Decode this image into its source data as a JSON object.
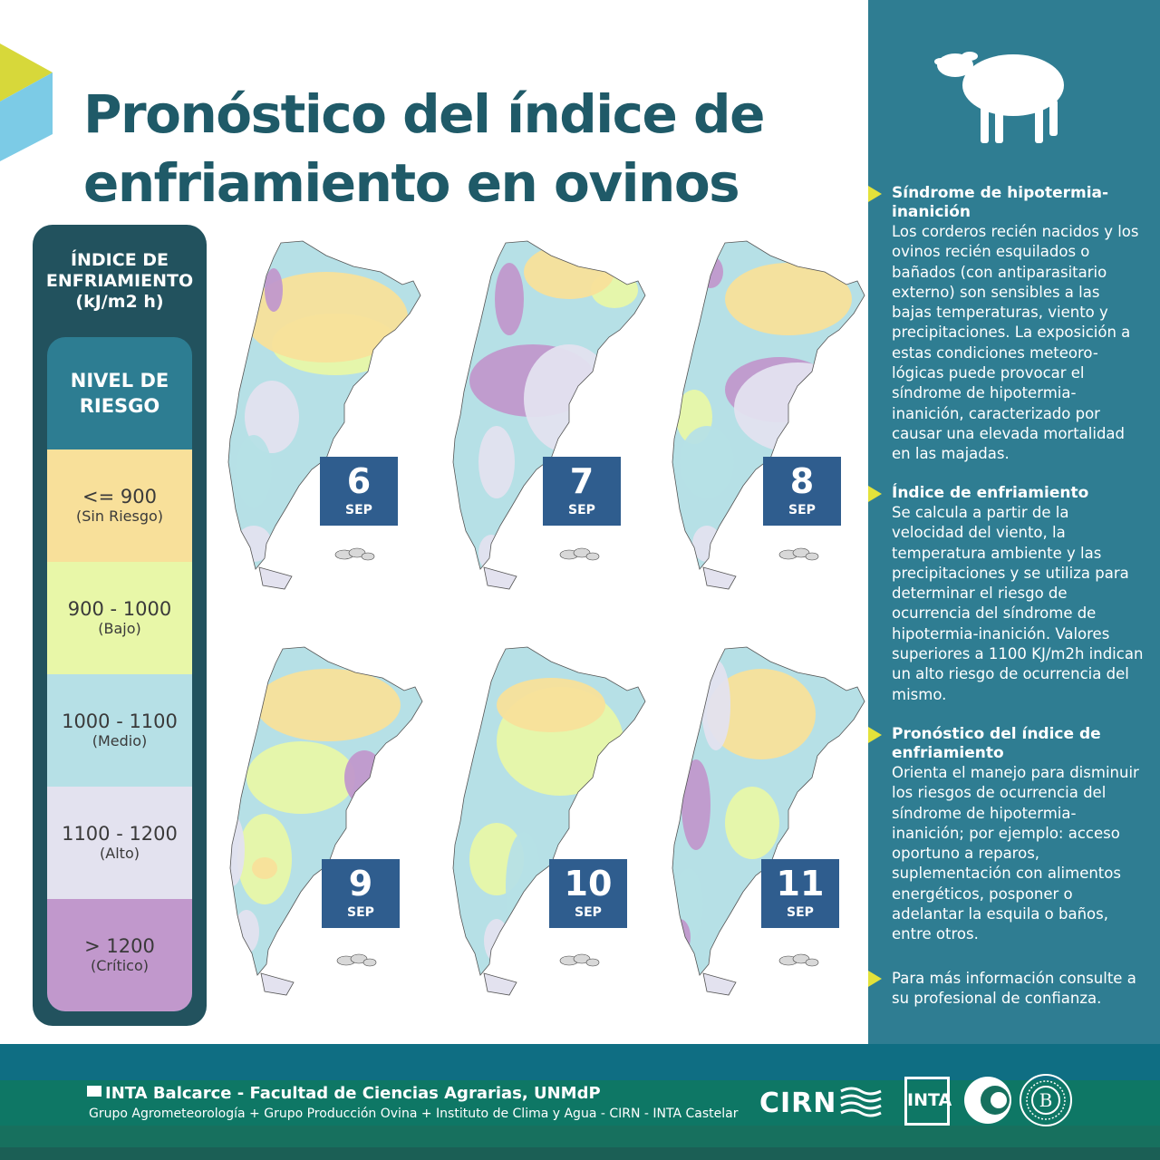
{
  "title": "Pronóstico del índice de\nenfriamiento en ovinos",
  "legend": {
    "title_lines": [
      "ÍNDICE DE",
      "ENFRIAMIENTO",
      "(kJ/m2 h)"
    ],
    "risk_header_lines": [
      "NIVEL DE",
      "RIESGO"
    ],
    "levels": [
      {
        "range": "<= 900",
        "label": "(Sin Riesgo)",
        "color": "#f8e09a"
      },
      {
        "range": "900 - 1000",
        "label": "(Bajo)",
        "color": "#e8f7a8"
      },
      {
        "range": "1000 - 1100",
        "label": "(Medio)",
        "color": "#b6e0e6"
      },
      {
        "range": "1100 - 1200",
        "label": "(Alto)",
        "color": "#e3e2ef"
      },
      {
        "range": "> 1200",
        "label": "(Crítico)",
        "color": "#c198cc"
      }
    ]
  },
  "maps": [
    {
      "day": "6",
      "month": "SEP"
    },
    {
      "day": "7",
      "month": "SEP"
    },
    {
      "day": "8",
      "month": "SEP"
    },
    {
      "day": "9",
      "month": "SEP"
    },
    {
      "day": "10",
      "month": "SEP"
    },
    {
      "day": "11",
      "month": "SEP"
    }
  ],
  "sidebar": {
    "sections": [
      {
        "heading": "Síndrome de hipotermia-inanición",
        "body": "Los corderos recién nacidos y los ovinos recién esquilados o bañados (con antiparasitario externo) son sensibles a las bajas temperaturas, viento y precipitaciones. La exposición a estas condiciones meteoro-lógicas puede provocar el síndrome de hipotermia-inanición, caracterizado por causar una elevada mortalidad en las majadas."
      },
      {
        "heading": "Índice de enfriamiento",
        "body": "Se calcula a partir de la velocidad del viento, la temperatura ambiente y las precipitaciones y se utiliza para determinar el riesgo de ocurrencia del síndrome de hipotermia-inanición. Valores superiores a 1100 KJ/m2h indican un alto riesgo de ocurrencia del mismo."
      },
      {
        "heading": "Pronóstico del índice de enfriamiento",
        "body": "Orienta el manejo para disminuir los riesgos de ocurrencia del síndrome de hipotermia-inanición; por ejemplo: acceso oportuno a reparos, suplementación con alimentos energéticos, posponer o adelantar la esquila o baños, entre otros."
      },
      {
        "heading": "",
        "body": "Para más información consulte a su profesional de confianza."
      }
    ]
  },
  "footer": {
    "line1": "INTA Balcarce - Facultad de Ciencias Agrarias, UNMdP",
    "line2": "Grupo Agrometeorología + Grupo Producción Ovina + Instituto de Clima y Agua - CIRN - INTA Castelar",
    "cirn": "CIRN",
    "inta": "INTA"
  }
}
